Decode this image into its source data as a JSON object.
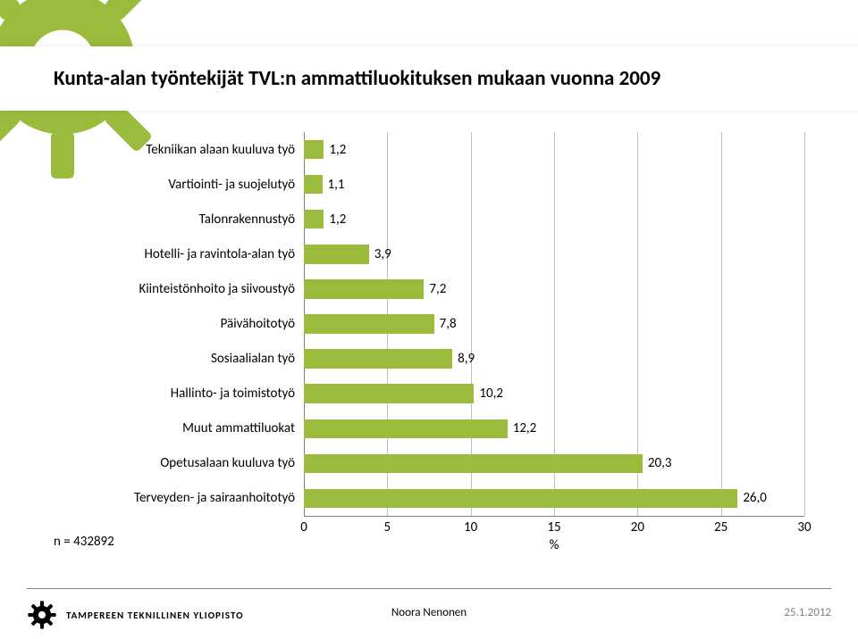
{
  "title": "Kunta-alan työntekijät TVL:n ammattiluokituksen mukaan vuonna 2009",
  "chart": {
    "type": "bar-horizontal",
    "categories": [
      "Tekniikan alaan kuuluva työ",
      "Vartiointi- ja suojelutyö",
      "Talonrakennustyö",
      "Hotelli- ja ravintola-alan työ",
      "Kiinteistönhoito ja siivoustyö",
      "Päivähoitotyö",
      "Sosiaalialan työ",
      "Hallinto- ja toimistotyö",
      "Muut ammattiluokat",
      "Opetusalaan kuuluva työ",
      "Terveyden- ja sairaanhoitotyö"
    ],
    "values": [
      1.2,
      1.1,
      1.2,
      3.9,
      7.2,
      7.8,
      8.9,
      10.2,
      12.2,
      20.3,
      26.0
    ],
    "value_labels": [
      "1,2",
      "1,1",
      "1,2",
      "3,9",
      "7,2",
      "7,8",
      "8,9",
      "10,2",
      "12,2",
      "20,3",
      "26,0"
    ],
    "bar_color": "#9bbb3c",
    "xlim": [
      0,
      30
    ],
    "xtick_step": 5,
    "xticks": [
      0,
      5,
      10,
      15,
      20,
      25,
      30
    ],
    "x_title": "%",
    "grid_color": "#bfbfbf",
    "axis_color": "#808080",
    "background_color": "#ffffff",
    "label_fontsize": 15,
    "value_fontsize": 15,
    "bar_gap_ratio": 0.45
  },
  "n_label": "n  = 432892",
  "footer": {
    "org": "TAMPEREEN TEKNILLINEN YLIOPISTO",
    "center": "Noora Nenonen",
    "right": "25.1.2012"
  },
  "decor": {
    "gear_color": "#9bbb3c"
  }
}
